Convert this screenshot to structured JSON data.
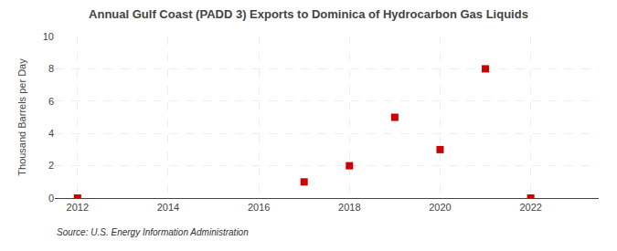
{
  "chart_data": {
    "type": "scatter",
    "title": "Annual Gulf Coast (PADD 3) Exports to Dominica of Hydrocarbon Gas Liquids",
    "ylabel": "Thousand Barrels per Day",
    "source": "Source: U.S. Energy Information Administration",
    "x": [
      2012,
      2017,
      2018,
      2019,
      2020,
      2021,
      2022
    ],
    "values": [
      0,
      1,
      2,
      5,
      3,
      8,
      0
    ],
    "color": "#cc0000",
    "marker": "square",
    "xlim": [
      2011.5,
      2023.5
    ],
    "ylim": [
      0,
      10
    ],
    "xticks": [
      2012,
      2014,
      2016,
      2018,
      2020,
      2022
    ],
    "yticks": [
      0,
      2,
      4,
      6,
      8,
      10
    ],
    "grid": true
  }
}
